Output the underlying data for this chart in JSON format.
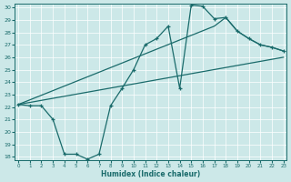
{
  "xlabel": "Humidex (Indice chaleur)",
  "xlim": [
    0,
    23
  ],
  "ylim": [
    18,
    30
  ],
  "xticks": [
    0,
    1,
    2,
    3,
    4,
    5,
    6,
    7,
    8,
    9,
    10,
    11,
    12,
    13,
    14,
    15,
    16,
    17,
    18,
    19,
    20,
    21,
    22,
    23
  ],
  "yticks": [
    18,
    19,
    20,
    21,
    22,
    23,
    24,
    25,
    26,
    27,
    28,
    29,
    30
  ],
  "bg_color": "#cce8e8",
  "line_color": "#1a6b6b",
  "line1_x": [
    0,
    1,
    2,
    3,
    4,
    5,
    6,
    7,
    8,
    9,
    10,
    11,
    12,
    13,
    14,
    15,
    16,
    17,
    18,
    19,
    20,
    21,
    22,
    23
  ],
  "line1_y": [
    22.2,
    22.1,
    22.1,
    21.0,
    18.2,
    18.2,
    17.8,
    18.2,
    22.1,
    23.5,
    25.0,
    27.0,
    27.5,
    28.5,
    23.5,
    30.2,
    30.1,
    29.1,
    29.2,
    28.1,
    27.5,
    27.0,
    26.8,
    26.5
  ],
  "line2_x": [
    0,
    23
  ],
  "line2_y": [
    22.2,
    26.0
  ],
  "line3_x": [
    0,
    17,
    18,
    19,
    20,
    21,
    22,
    23
  ],
  "line3_y": [
    22.2,
    28.5,
    29.2,
    28.1,
    27.5,
    27.0,
    26.8,
    26.5
  ]
}
